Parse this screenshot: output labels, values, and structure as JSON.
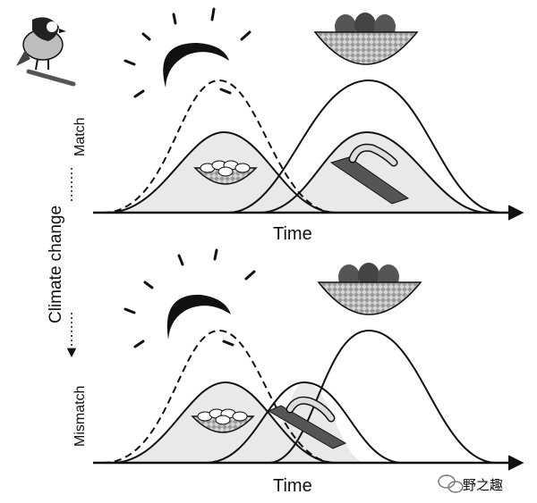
{
  "top_panel": {
    "axis_label": "Time",
    "side_label": "Match"
  },
  "bottom_panel": {
    "axis_label": "Time",
    "side_label": "Mismatch"
  },
  "center_label": "Climate change",
  "watermark": "野之趣",
  "colors": {
    "ink": "#111111",
    "fill_gray": "#e9e9e9",
    "nest_gray": "#8a8a8a"
  },
  "icons": [
    "bird-icon",
    "sun-icon",
    "nest-with-eggs-icon",
    "nest-with-chicks-icon",
    "caterpillar-icon",
    "wechat-icon"
  ]
}
